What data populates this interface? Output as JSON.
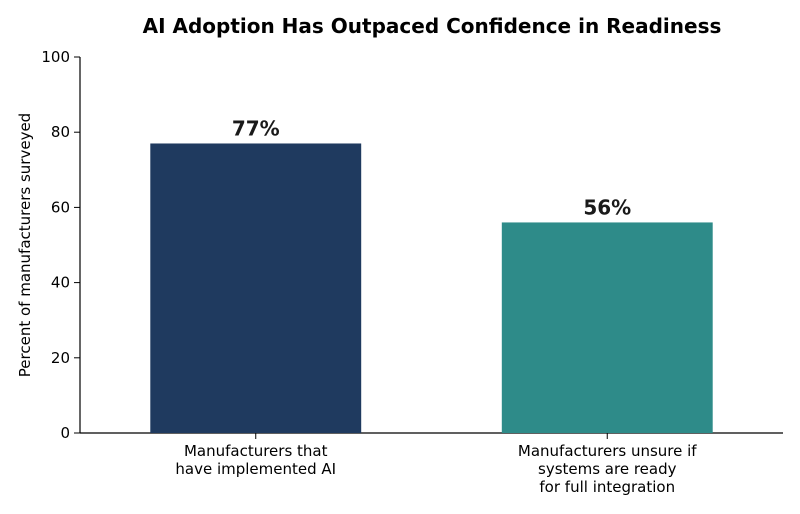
{
  "chart_data": {
    "type": "bar",
    "title": "AI Adoption Has Outpaced Confidence in Readiness",
    "ylabel": "Percent of manufacturers surveyed",
    "xlabel": "",
    "ylim": [
      0,
      100
    ],
    "yticks": [
      0,
      20,
      40,
      60,
      80,
      100
    ],
    "categories": [
      [
        "Manufacturers that",
        "have implemented AI"
      ],
      [
        "Manufacturers unsure if",
        "systems are ready",
        "for full integration"
      ]
    ],
    "values": [
      77,
      56
    ],
    "data_labels": [
      "77%",
      "56%"
    ],
    "colors": [
      "#1f3a5f",
      "#2e8b89"
    ],
    "grid": false,
    "legend": "none"
  }
}
